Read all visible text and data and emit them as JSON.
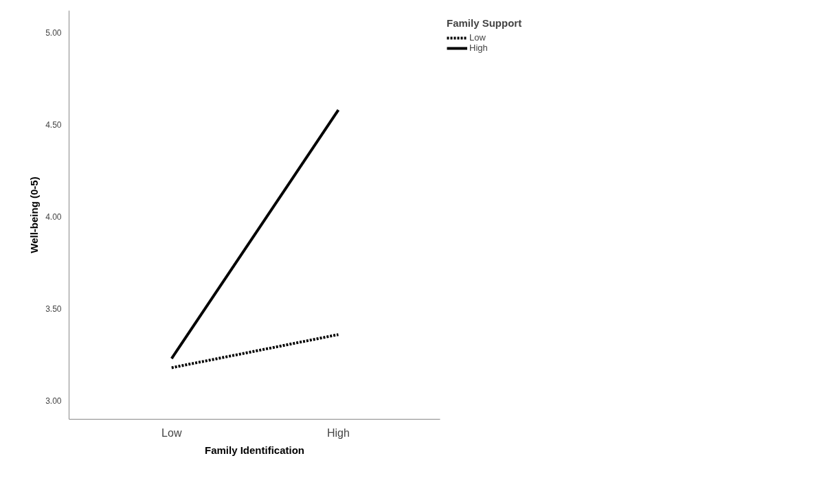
{
  "chart_data": {
    "type": "line",
    "xlabel": "Family Identification",
    "ylabel": "Well-being (0-5)",
    "legend_title": "Family Support",
    "categories": [
      "Low",
      "High"
    ],
    "series": [
      {
        "name": "Low",
        "color": "#000000",
        "line_style": "dotted",
        "values": [
          3.18,
          3.36
        ]
      },
      {
        "name": "High",
        "color": "#000000",
        "line_style": "solid",
        "values": [
          3.23,
          4.58
        ]
      }
    ],
    "ylim": [
      2.9,
      5.12
    ],
    "yticks": [
      {
        "value": 3,
        "label": "3.00"
      },
      {
        "value": 3.5,
        "label": "3.50"
      },
      {
        "value": 4,
        "label": "4.00"
      },
      {
        "value": 4.5,
        "label": "4.50"
      },
      {
        "value": 5,
        "label": "5.00"
      }
    ],
    "grid": false,
    "legend": "top right",
    "marker": "none"
  }
}
